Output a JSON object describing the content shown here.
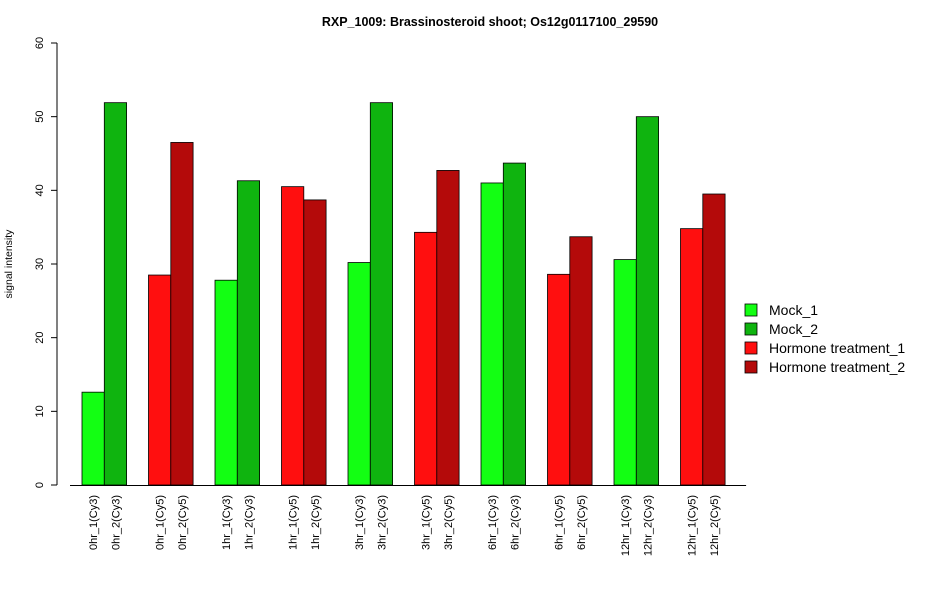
{
  "chart_data": {
    "type": "bar",
    "title": "RXP_1009: Brassinosteroid shoot; Os12g0117100_29590",
    "xlabel": "",
    "ylabel": "signal intensity",
    "ylim": [
      0,
      60
    ],
    "yticks": [
      0,
      10,
      20,
      30,
      40,
      50,
      60
    ],
    "grid": false,
    "legend_position": "right",
    "groups": [
      {
        "bars": [
          {
            "label": "0hr_1(Cy3)",
            "value": 12.6,
            "series": 0
          },
          {
            "label": "0hr_2(Cy3)",
            "value": 51.9,
            "series": 1
          }
        ]
      },
      {
        "bars": [
          {
            "label": "0hr_1(Cy5)",
            "value": 28.5,
            "series": 2
          },
          {
            "label": "0hr_2(Cy5)",
            "value": 46.5,
            "series": 3
          }
        ]
      },
      {
        "bars": [
          {
            "label": "1hr_1(Cy3)",
            "value": 27.8,
            "series": 0
          },
          {
            "label": "1hr_2(Cy3)",
            "value": 41.3,
            "series": 1
          }
        ]
      },
      {
        "bars": [
          {
            "label": "1hr_1(Cy5)",
            "value": 40.5,
            "series": 2
          },
          {
            "label": "1hr_2(Cy5)",
            "value": 38.7,
            "series": 3
          }
        ]
      },
      {
        "bars": [
          {
            "label": "3hr_1(Cy3)",
            "value": 30.2,
            "series": 0
          },
          {
            "label": "3hr_2(Cy3)",
            "value": 51.9,
            "series": 1
          }
        ]
      },
      {
        "bars": [
          {
            "label": "3hr_1(Cy5)",
            "value": 34.3,
            "series": 2
          },
          {
            "label": "3hr_2(Cy5)",
            "value": 42.7,
            "series": 3
          }
        ]
      },
      {
        "bars": [
          {
            "label": "6hr_1(Cy3)",
            "value": 41.0,
            "series": 0
          },
          {
            "label": "6hr_2(Cy3)",
            "value": 43.7,
            "series": 1
          }
        ]
      },
      {
        "bars": [
          {
            "label": "6hr_1(Cy5)",
            "value": 28.6,
            "series": 2
          },
          {
            "label": "6hr_2(Cy5)",
            "value": 33.7,
            "series": 3
          }
        ]
      },
      {
        "bars": [
          {
            "label": "12hr_1(Cy3)",
            "value": 30.6,
            "series": 0
          },
          {
            "label": "12hr_2(Cy3)",
            "value": 50.0,
            "series": 1
          }
        ]
      },
      {
        "bars": [
          {
            "label": "12hr_1(Cy5)",
            "value": 34.8,
            "series": 2
          },
          {
            "label": "12hr_2(Cy5)",
            "value": 39.5,
            "series": 3
          }
        ]
      }
    ],
    "series": [
      {
        "name": "Mock_1",
        "color": "#13ff13"
      },
      {
        "name": "Mock_2",
        "color": "#0fb40f"
      },
      {
        "name": "Hormone treatment_1",
        "color": "#ff0f0f"
      },
      {
        "name": "Hormone treatment_2",
        "color": "#b40a0a"
      }
    ]
  }
}
